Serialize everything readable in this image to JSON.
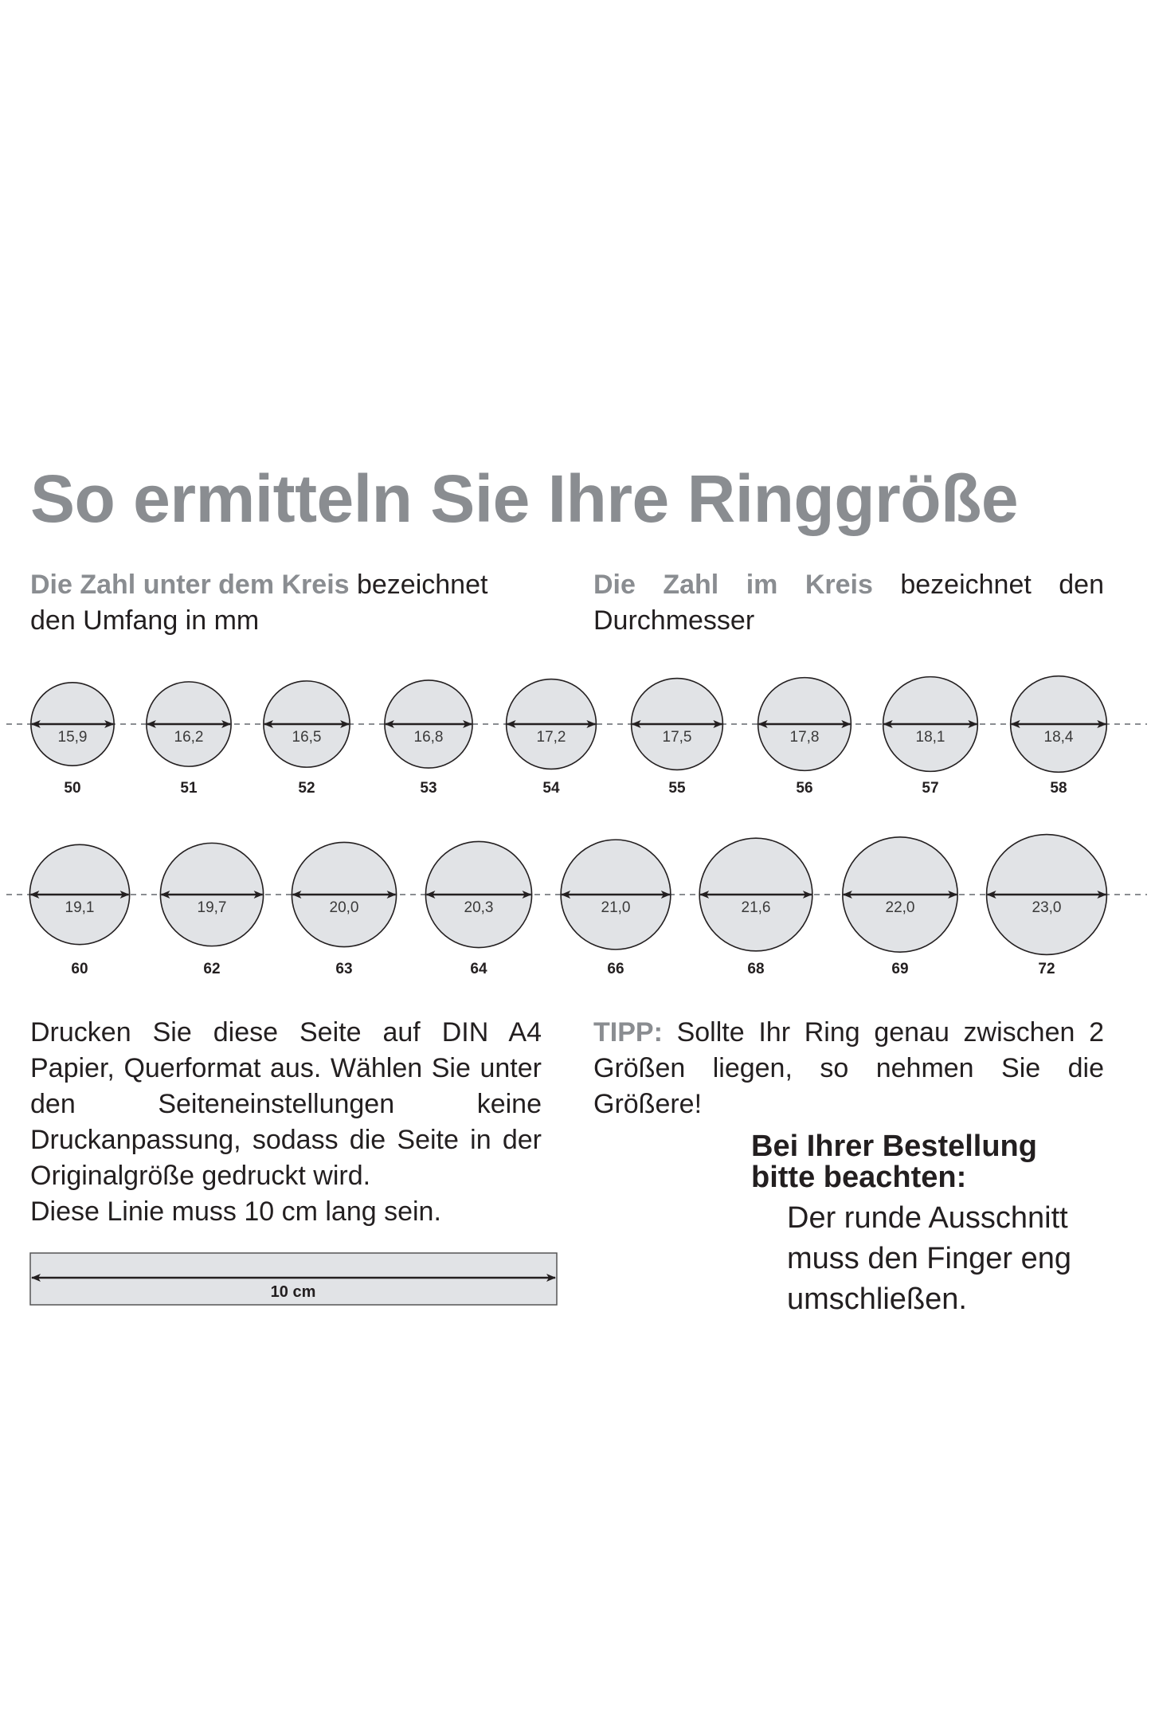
{
  "title": "So ermitteln Sie Ihre Ringgröße",
  "legend_left": {
    "highlight": "Die Zahl unter dem Kreis",
    "rest_line1": " bezeichnet",
    "rest_line2": "den Umfang in mm"
  },
  "legend_right": {
    "highlight": "Die Zahl im Kreis",
    "rest_line1": " bezeichnet den",
    "rest_line2": "Durchmesser"
  },
  "rings": [
    [
      {
        "size": "50",
        "diameter": "15,9"
      },
      {
        "size": "51",
        "diameter": "16,2"
      },
      {
        "size": "52",
        "diameter": "16,5"
      },
      {
        "size": "53",
        "diameter": "16,8"
      },
      {
        "size": "54",
        "diameter": "17,2"
      },
      {
        "size": "55",
        "diameter": "17,5"
      },
      {
        "size": "56",
        "diameter": "17,8"
      },
      {
        "size": "57",
        "diameter": "18,1"
      },
      {
        "size": "58",
        "diameter": "18,4"
      }
    ],
    [
      {
        "size": "60",
        "diameter": "19,1"
      },
      {
        "size": "62",
        "diameter": "19,7"
      },
      {
        "size": "63",
        "diameter": "20,0"
      },
      {
        "size": "64",
        "diameter": "20,3"
      },
      {
        "size": "66",
        "diameter": "21,0"
      },
      {
        "size": "68",
        "diameter": "21,6"
      },
      {
        "size": "69",
        "diameter": "22,0"
      },
      {
        "size": "72",
        "diameter": "23,0"
      }
    ]
  ],
  "instructions": "Drucken Sie diese Seite auf DIN A4 Papier, Querformat aus. Wählen Sie unter den Seiteneinstellungen keine Druckanpassung, sodass die Seite in der Originalgröße gedruckt wird.",
  "instructions_line": "Diese Linie muss 10 cm lang sein.",
  "ruler_label": "10 cm",
  "tipp": {
    "label": "TIPP:",
    "text": " Sollte Ihr Ring genau zwischen 2 Größen liegen, so nehmen Sie die Größere!"
  },
  "notice": {
    "title_line1": "Bei Ihrer Bestellung",
    "title_line2": "bitte beachten:",
    "lines": [
      "Der runde Ausschnitt",
      "muss den Finger eng",
      "umschließen."
    ]
  },
  "colors": {
    "accent_grey": "#8a8d91",
    "circle_fill": "#e1e3e6",
    "text": "#231f20",
    "dash": "#8a8d91"
  }
}
